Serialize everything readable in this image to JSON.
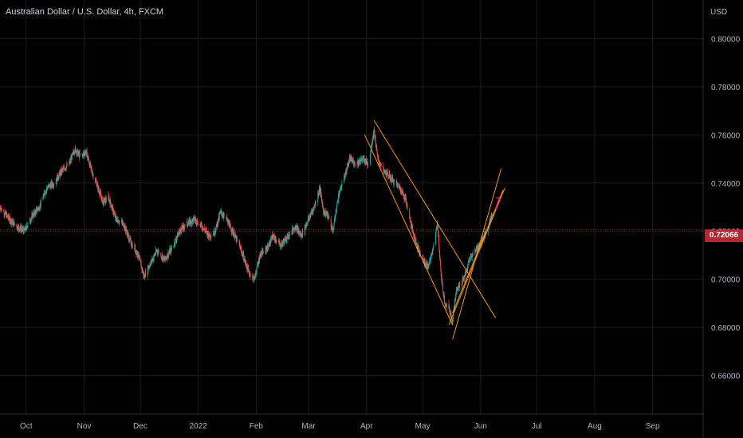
{
  "header": {
    "title": "Australian Dollar / U.S. Dollar, 4h, FXCM"
  },
  "chart_data": {
    "type": "candlestick",
    "symbol": "AUDUSD",
    "currency": "USD",
    "interval": "4h",
    "last_price": 0.72066,
    "last_price_label": "0.72066",
    "ylim": [
      0.644,
      0.816
    ],
    "y_ticks": [
      "0.66000",
      "0.68000",
      "0.70000",
      "0.72000",
      "0.74000",
      "0.76000",
      "0.78000",
      "0.80000"
    ],
    "x_ticks": [
      {
        "label": "Oct",
        "date": "2021-10-01"
      },
      {
        "label": "Nov",
        "date": "2021-11-01"
      },
      {
        "label": "Dec",
        "date": "2021-12-01"
      },
      {
        "label": "2022",
        "date": "2022-01-01"
      },
      {
        "label": "Feb",
        "date": "2022-02-01"
      },
      {
        "label": "Mar",
        "date": "2022-03-01"
      },
      {
        "label": "Apr",
        "date": "2022-04-01"
      },
      {
        "label": "May",
        "date": "2022-05-01"
      },
      {
        "label": "Jun",
        "date": "2022-06-01"
      },
      {
        "label": "Jul",
        "date": "2022-07-01"
      },
      {
        "label": "Aug",
        "date": "2022-08-01"
      },
      {
        "label": "Sep",
        "date": "2022-09-01"
      }
    ],
    "xlim": [
      "2021-09-17",
      "2022-09-28"
    ],
    "price_path": [
      [
        "2021-09-17",
        0.73
      ],
      [
        "2021-09-22",
        0.725
      ],
      [
        "2021-09-26",
        0.722
      ],
      [
        "2021-09-30",
        0.72
      ],
      [
        "2021-10-04",
        0.726
      ],
      [
        "2021-10-08",
        0.73
      ],
      [
        "2021-10-12",
        0.738
      ],
      [
        "2021-10-16",
        0.74
      ],
      [
        "2021-10-20",
        0.745
      ],
      [
        "2021-10-24",
        0.748
      ],
      [
        "2021-10-27",
        0.754
      ],
      [
        "2021-10-30",
        0.751
      ],
      [
        "2021-11-02",
        0.753
      ],
      [
        "2021-11-05",
        0.745
      ],
      [
        "2021-11-08",
        0.739
      ],
      [
        "2021-11-11",
        0.732
      ],
      [
        "2021-11-14",
        0.734
      ],
      [
        "2021-11-18",
        0.725
      ],
      [
        "2021-11-22",
        0.723
      ],
      [
        "2021-11-26",
        0.715
      ],
      [
        "2021-11-30",
        0.71
      ],
      [
        "2021-12-03",
        0.701
      ],
      [
        "2021-12-06",
        0.706
      ],
      [
        "2021-12-10",
        0.712
      ],
      [
        "2021-12-14",
        0.708
      ],
      [
        "2021-12-18",
        0.713
      ],
      [
        "2021-12-22",
        0.72
      ],
      [
        "2021-12-26",
        0.723
      ],
      [
        "2021-12-30",
        0.725
      ],
      [
        "2022-01-03",
        0.722
      ],
      [
        "2022-01-07",
        0.718
      ],
      [
        "2022-01-10",
        0.72
      ],
      [
        "2022-01-13",
        0.728
      ],
      [
        "2022-01-16",
        0.725
      ],
      [
        "2022-01-20",
        0.719
      ],
      [
        "2022-01-24",
        0.712
      ],
      [
        "2022-01-28",
        0.703
      ],
      [
        "2022-01-31",
        0.7
      ],
      [
        "2022-02-03",
        0.71
      ],
      [
        "2022-02-07",
        0.713
      ],
      [
        "2022-02-10",
        0.718
      ],
      [
        "2022-02-14",
        0.714
      ],
      [
        "2022-02-18",
        0.718
      ],
      [
        "2022-02-22",
        0.722
      ],
      [
        "2022-02-25",
        0.718
      ],
      [
        "2022-03-01",
        0.725
      ],
      [
        "2022-03-04",
        0.73
      ],
      [
        "2022-03-07",
        0.738
      ],
      [
        "2022-03-09",
        0.728
      ],
      [
        "2022-03-11",
        0.727
      ],
      [
        "2022-03-14",
        0.72
      ],
      [
        "2022-03-17",
        0.735
      ],
      [
        "2022-03-20",
        0.742
      ],
      [
        "2022-03-23",
        0.75
      ],
      [
        "2022-03-26",
        0.748
      ],
      [
        "2022-03-30",
        0.75
      ],
      [
        "2022-04-02",
        0.748
      ],
      [
        "2022-04-05",
        0.762
      ],
      [
        "2022-04-07",
        0.75
      ],
      [
        "2022-04-10",
        0.745
      ],
      [
        "2022-04-13",
        0.743
      ],
      [
        "2022-04-16",
        0.74
      ],
      [
        "2022-04-19",
        0.738
      ],
      [
        "2022-04-22",
        0.733
      ],
      [
        "2022-04-25",
        0.722
      ],
      [
        "2022-04-28",
        0.714
      ],
      [
        "2022-05-01",
        0.708
      ],
      [
        "2022-05-04",
        0.705
      ],
      [
        "2022-05-06",
        0.711
      ],
      [
        "2022-05-09",
        0.723
      ],
      [
        "2022-05-11",
        0.7
      ],
      [
        "2022-05-13",
        0.69
      ],
      [
        "2022-05-15",
        0.688
      ],
      [
        "2022-05-17",
        0.683
      ],
      [
        "2022-05-19",
        0.695
      ],
      [
        "2022-05-21",
        0.698
      ],
      [
        "2022-05-24",
        0.702
      ],
      [
        "2022-05-26",
        0.708
      ],
      [
        "2022-05-29",
        0.712
      ],
      [
        "2022-06-01",
        0.715
      ],
      [
        "2022-06-03",
        0.718
      ],
      [
        "2022-06-05",
        0.721
      ],
      [
        "2022-06-07",
        0.728
      ]
    ],
    "colors": {
      "up": "#26a69a",
      "down": "#ef5350",
      "trendline": "#f7931a",
      "last_price_line": "#b22833",
      "arrow": "#e91e63",
      "grid": "#1c1c1c"
    },
    "grid": true,
    "drawings": [
      {
        "type": "trendline",
        "from": [
          "2022-03-31",
          0.76
        ],
        "to": [
          "2022-05-17",
          0.681
        ]
      },
      {
        "type": "trendline",
        "from": [
          "2022-04-05",
          0.766
        ],
        "to": [
          "2022-06-09",
          0.684
        ]
      },
      {
        "type": "trendline",
        "from": [
          "2022-05-17",
          0.675
        ],
        "to": [
          "2022-06-12",
          0.746
        ]
      },
      {
        "type": "trendline",
        "from": [
          "2022-05-15",
          0.681
        ],
        "to": [
          "2022-06-14",
          0.738
        ]
      },
      {
        "type": "trendline",
        "from": [
          "2022-05-17",
          0.686
        ],
        "to": [
          "2022-06-13",
          0.737
        ]
      }
    ],
    "projection_arrow": {
      "from": [
        "2022-06-09",
        0.729
      ],
      "to": [
        "2022-06-11",
        0.734
      ]
    }
  }
}
